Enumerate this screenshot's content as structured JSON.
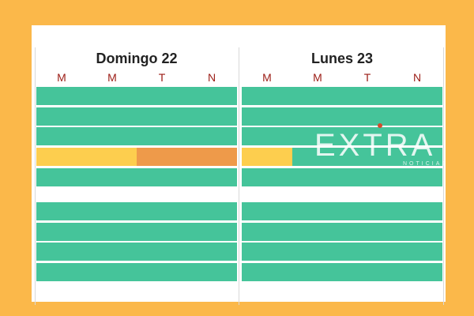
{
  "days": [
    {
      "title": "Domingo 22",
      "slots": [
        "M",
        "M",
        "T",
        "N"
      ],
      "rows": [
        [
          {
            "color": "green",
            "frac": 1
          }
        ],
        [
          {
            "color": "green",
            "frac": 1
          }
        ],
        [
          {
            "color": "green",
            "frac": 1
          }
        ],
        [
          {
            "color": "yellow",
            "frac": 0.5
          },
          {
            "color": "orange",
            "frac": 0.5
          }
        ],
        [
          {
            "color": "green",
            "frac": 1
          }
        ],
        [
          {
            "color": "green",
            "frac": 1
          }
        ],
        [
          {
            "color": "green",
            "frac": 1
          }
        ],
        [
          {
            "color": "green",
            "frac": 1
          }
        ],
        [
          {
            "color": "green",
            "frac": 1
          }
        ]
      ]
    },
    {
      "title": "Lunes 23",
      "slots": [
        "M",
        "M",
        "T",
        "N"
      ],
      "rows": [
        [
          {
            "color": "green",
            "frac": 1
          }
        ],
        [
          {
            "color": "green",
            "frac": 1
          }
        ],
        [
          {
            "color": "green",
            "frac": 1
          }
        ],
        [
          {
            "color": "yellow",
            "frac": 0.25
          },
          {
            "color": "green",
            "frac": 0.75
          }
        ],
        [
          {
            "color": "green",
            "frac": 1
          }
        ],
        [
          {
            "color": "green",
            "frac": 1
          }
        ],
        [
          {
            "color": "green",
            "frac": 1
          }
        ],
        [
          {
            "color": "green",
            "frac": 1
          }
        ],
        [
          {
            "color": "green",
            "frac": 1
          }
        ]
      ]
    }
  ],
  "colors": {
    "green": "#45C49A",
    "yellow": "#FDCE4E",
    "orange": "#EE9A4A",
    "background": "#FBB84A",
    "slot_letter": "#9B1B14"
  },
  "watermark": {
    "word": "EXTRA",
    "sub": "NOTICIAS"
  }
}
